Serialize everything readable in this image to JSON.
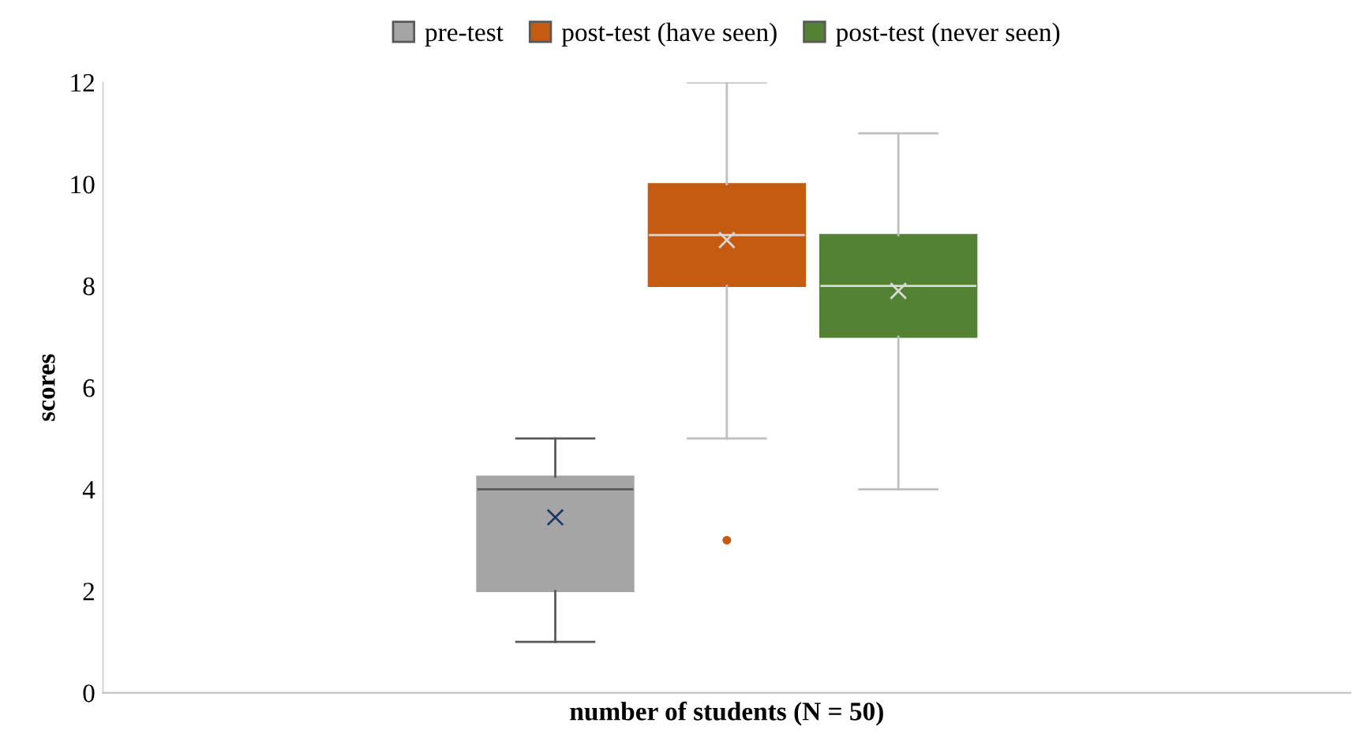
{
  "chart_data": {
    "type": "box",
    "xlabel": "number of students (N = 50)",
    "ylabel": "scores",
    "categories": [
      null
    ],
    "ylim": [
      0,
      12
    ],
    "yticks": [
      0,
      2,
      4,
      6,
      8,
      10,
      12
    ],
    "grid": false,
    "legend": "top",
    "marker": "cross",
    "series": [
      {
        "name": "pre-test",
        "color": "#a5a5a5",
        "boxes": [
          {
            "low": 1,
            "q1": 2,
            "median": 4,
            "q3": 4.25,
            "high": 5,
            "mean": 3.45
          }
        ]
      },
      {
        "name": "post-test (have seen)",
        "color": "#c55a11",
        "boxes": [
          {
            "low": 5,
            "q1": 8,
            "median": 9,
            "q3": 10,
            "high": 12,
            "mean": 8.9,
            "outliers": [
              3
            ]
          }
        ]
      },
      {
        "name": "post-test (never seen)",
        "color": "#548235",
        "boxes": [
          {
            "low": 4,
            "q1": 7,
            "median": 8,
            "q3": 9,
            "high": 11,
            "mean": 7.9
          }
        ]
      }
    ]
  }
}
